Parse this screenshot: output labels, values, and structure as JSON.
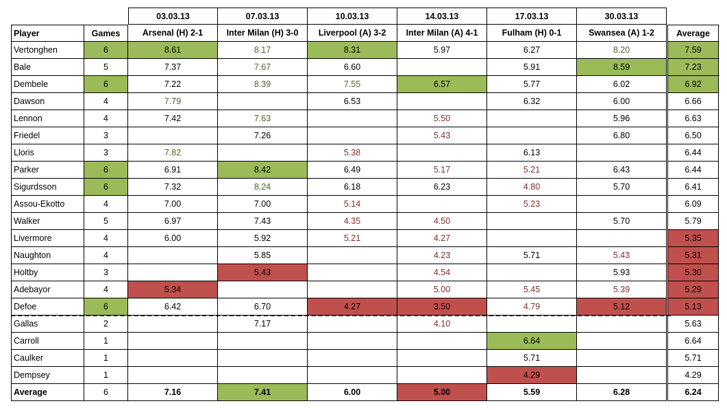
{
  "dates": [
    "03.03.13",
    "07.03.13",
    "10.03.13",
    "14.03.13",
    "17.03.13",
    "30.03.13"
  ],
  "columns": {
    "player": "Player",
    "games": "Games",
    "matches": [
      "Arsenal (H) 2-1",
      "Inter Milan (H) 3-0",
      "Liverpool (A) 3-2",
      "Inter Milan (A) 4-1",
      "Fulham (H) 0-1",
      "Swansea (A) 1-2"
    ],
    "average": "Average"
  },
  "colors": {
    "green_fill": "#9bbb59",
    "red_fill": "#c0504d",
    "green_text": "#4f6228",
    "red_text": "#7f2f2d"
  },
  "rows": [
    {
      "player": "Vertonghen",
      "games": "6",
      "games_hl": "g",
      "scores": [
        "8.61",
        "8.17",
        "8.31",
        "5.97",
        "6.27",
        "8.20"
      ],
      "styles": [
        "g",
        "tg",
        "g",
        "",
        "",
        "tg"
      ],
      "average": "7.59",
      "avg_hl": "g"
    },
    {
      "player": "Bale",
      "games": "5",
      "games_hl": "",
      "scores": [
        "7.37",
        "7.67",
        "6.60",
        "",
        "5.91",
        "8.59"
      ],
      "styles": [
        "",
        "tg",
        "",
        "",
        "",
        "g"
      ],
      "average": "7.23",
      "avg_hl": "g"
    },
    {
      "player": "Dembele",
      "games": "6",
      "games_hl": "g",
      "scores": [
        "7.22",
        "8.39",
        "7.55",
        "6.57",
        "5.77",
        "6.02"
      ],
      "styles": [
        "",
        "tg",
        "tg",
        "g",
        "",
        ""
      ],
      "average": "6.92",
      "avg_hl": "g"
    },
    {
      "player": "Dawson",
      "games": "4",
      "games_hl": "",
      "scores": [
        "7.79",
        "",
        "6.53",
        "",
        "6.32",
        "6.00"
      ],
      "styles": [
        "tg",
        "",
        "",
        "",
        "",
        ""
      ],
      "average": "6.66",
      "avg_hl": ""
    },
    {
      "player": "Lennon",
      "games": "4",
      "games_hl": "",
      "scores": [
        "7.42",
        "7.63",
        "",
        "5.50",
        "",
        "5.96"
      ],
      "styles": [
        "",
        "tg",
        "",
        "tr",
        "",
        ""
      ],
      "average": "6.63",
      "avg_hl": ""
    },
    {
      "player": "Friedel",
      "games": "3",
      "games_hl": "",
      "scores": [
        "",
        "7.26",
        "",
        "5.43",
        "",
        "6.80"
      ],
      "styles": [
        "",
        "",
        "",
        "tr",
        "",
        ""
      ],
      "average": "6.50",
      "avg_hl": ""
    },
    {
      "player": "Lloris",
      "games": "3",
      "games_hl": "",
      "scores": [
        "7.82",
        "",
        "5.38",
        "",
        "6.13",
        ""
      ],
      "styles": [
        "tg",
        "",
        "tr",
        "",
        "",
        ""
      ],
      "average": "6.44",
      "avg_hl": ""
    },
    {
      "player": "Parker",
      "games": "6",
      "games_hl": "g",
      "scores": [
        "6.91",
        "8.42",
        "6.49",
        "5.17",
        "5.21",
        "6.43"
      ],
      "styles": [
        "",
        "g",
        "",
        "tr",
        "tr",
        ""
      ],
      "average": "6.44",
      "avg_hl": ""
    },
    {
      "player": "Sigurdsson",
      "games": "6",
      "games_hl": "g",
      "scores": [
        "7.32",
        "8.24",
        "6.18",
        "6.23",
        "4.80",
        "5.70"
      ],
      "styles": [
        "",
        "tg",
        "",
        "",
        "tr",
        ""
      ],
      "average": "6.41",
      "avg_hl": ""
    },
    {
      "player": "Assou-Ekotto",
      "games": "4",
      "games_hl": "",
      "scores": [
        "7.00",
        "7.00",
        "5.14",
        "",
        "5.23",
        ""
      ],
      "styles": [
        "",
        "",
        "tr",
        "",
        "tr",
        ""
      ],
      "average": "6.09",
      "avg_hl": ""
    },
    {
      "player": "Walker",
      "games": "5",
      "games_hl": "",
      "scores": [
        "6.97",
        "7.43",
        "4.35",
        "4.50",
        "",
        "5.70"
      ],
      "styles": [
        "",
        "",
        "tr",
        "tr",
        "",
        ""
      ],
      "average": "5.79",
      "avg_hl": ""
    },
    {
      "player": "Livermore",
      "games": "4",
      "games_hl": "",
      "scores": [
        "6.00",
        "5.92",
        "5.21",
        "4.27",
        "",
        ""
      ],
      "styles": [
        "",
        "",
        "tr",
        "tr",
        "",
        ""
      ],
      "average": "5.35",
      "avg_hl": "r"
    },
    {
      "player": "Naughton",
      "games": "4",
      "games_hl": "",
      "scores": [
        "",
        "5.85",
        "",
        "4.23",
        "5.71",
        "5.43"
      ],
      "styles": [
        "",
        "",
        "",
        "tr",
        "",
        "tr"
      ],
      "average": "5.31",
      "avg_hl": "r"
    },
    {
      "player": "Holtby",
      "games": "3",
      "games_hl": "",
      "scores": [
        "",
        "5.43",
        "",
        "4.54",
        "",
        "5.93"
      ],
      "styles": [
        "",
        "r",
        "",
        "tr",
        "",
        ""
      ],
      "average": "5.30",
      "avg_hl": "r"
    },
    {
      "player": "Adebayor",
      "games": "4",
      "games_hl": "",
      "scores": [
        "5.34",
        "",
        "",
        "5.00",
        "5.45",
        "5.39"
      ],
      "styles": [
        "r",
        "",
        "",
        "tr",
        "tr",
        "tr"
      ],
      "average": "5.29",
      "avg_hl": "r"
    },
    {
      "player": "Defoe",
      "games": "6",
      "games_hl": "g",
      "scores": [
        "6.42",
        "6.70",
        "4.27",
        "3.50",
        "4.79",
        "5.12"
      ],
      "styles": [
        "",
        "",
        "r",
        "r",
        "tr",
        "r"
      ],
      "average": "5.13",
      "avg_hl": "r"
    },
    {
      "player": "Gallas",
      "games": "2",
      "games_hl": "",
      "scores": [
        "",
        "7.17",
        "",
        "4.10",
        "",
        ""
      ],
      "styles": [
        "",
        "",
        "",
        "tr",
        "",
        ""
      ],
      "average": "5.63",
      "avg_hl": ""
    },
    {
      "player": "Carroll",
      "games": "1",
      "games_hl": "",
      "scores": [
        "",
        "",
        "",
        "",
        "6.64",
        ""
      ],
      "styles": [
        "",
        "",
        "",
        "",
        "g",
        ""
      ],
      "average": "6.64",
      "avg_hl": ""
    },
    {
      "player": "Caulker",
      "games": "1",
      "games_hl": "",
      "scores": [
        "",
        "",
        "",
        "",
        "5.71",
        ""
      ],
      "styles": [
        "",
        "",
        "",
        "",
        "",
        ""
      ],
      "average": "5.71",
      "avg_hl": ""
    },
    {
      "player": "Dempsey",
      "games": "1",
      "games_hl": "",
      "scores": [
        "",
        "",
        "",
        "",
        "4.29",
        ""
      ],
      "styles": [
        "",
        "",
        "",
        "",
        "r",
        ""
      ],
      "average": "4.29",
      "avg_hl": ""
    }
  ],
  "footer": {
    "label": "Average",
    "games": "6",
    "scores": [
      "7.16",
      "7.41",
      "6.00",
      "5.00",
      "5.59",
      "6.28"
    ],
    "styles": [
      "",
      "g",
      "",
      "r",
      "",
      ""
    ],
    "average": "6.24"
  }
}
